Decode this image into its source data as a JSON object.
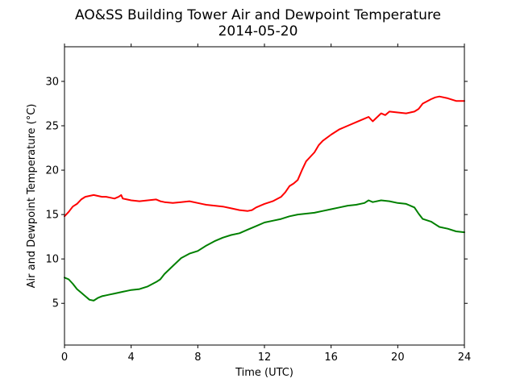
{
  "chart_data": {
    "type": "line",
    "title": "AO&SS Building Tower Air and Dewpoint Temperature",
    "subtitle": "2014-05-20",
    "xlabel": "Time (UTC)",
    "ylabel": "Air and Dewpoint Temperature (°C)",
    "xlim": [
      0,
      24
    ],
    "ylim": [
      0.3,
      33.9
    ],
    "xticks": [
      0,
      4,
      8,
      12,
      16,
      20,
      24
    ],
    "yticks": [
      5,
      10,
      15,
      20,
      25,
      30
    ],
    "grid": false,
    "legend": "none",
    "series": [
      {
        "color": "#ff0000",
        "x": [
          0,
          0.25,
          0.5,
          0.75,
          1,
          1.25,
          1.5,
          1.75,
          2,
          2.25,
          2.5,
          2.75,
          3,
          3.25,
          3.4,
          3.5,
          3.75,
          4,
          4.5,
          5,
          5.5,
          5.75,
          6,
          6.5,
          7,
          7.5,
          8,
          8.5,
          9,
          9.5,
          10,
          10.5,
          11,
          11.25,
          11.5,
          12,
          12.5,
          13,
          13.25,
          13.5,
          13.75,
          14,
          14.25,
          14.5,
          15,
          15.25,
          15.5,
          16,
          16.5,
          17,
          17.5,
          18,
          18.25,
          18.5,
          19,
          19.25,
          19.5,
          20,
          20.5,
          21,
          21.25,
          21.5,
          22,
          22.25,
          22.5,
          23,
          23.5,
          24
        ],
        "y": [
          14.8,
          15.3,
          15.9,
          16.2,
          16.7,
          17.0,
          17.1,
          17.2,
          17.1,
          17.0,
          17.0,
          16.9,
          16.8,
          17.0,
          17.2,
          16.8,
          16.7,
          16.6,
          16.5,
          16.6,
          16.7,
          16.5,
          16.4,
          16.3,
          16.4,
          16.5,
          16.3,
          16.1,
          16.0,
          15.9,
          15.7,
          15.5,
          15.4,
          15.5,
          15.8,
          16.2,
          16.5,
          17.0,
          17.5,
          18.2,
          18.5,
          18.9,
          20.0,
          21.0,
          22.0,
          22.8,
          23.3,
          24.0,
          24.6,
          25.0,
          25.4,
          25.8,
          26.0,
          25.5,
          26.4,
          26.2,
          26.6,
          26.5,
          26.4,
          26.6,
          26.9,
          27.5,
          28.0,
          28.2,
          28.3,
          28.1,
          27.8,
          27.8
        ]
      },
      {
        "color": "#008000",
        "x": [
          0,
          0.25,
          0.5,
          0.75,
          1,
          1.25,
          1.5,
          1.75,
          2,
          2.25,
          2.5,
          2.75,
          3,
          3.25,
          3.5,
          3.75,
          4,
          4.5,
          5,
          5.5,
          5.75,
          6,
          6.5,
          7,
          7.5,
          8,
          8.5,
          9,
          9.5,
          10,
          10.5,
          11,
          11.5,
          12,
          12.5,
          13,
          13.5,
          14,
          14.5,
          15,
          15.5,
          16,
          16.5,
          17,
          17.5,
          18,
          18.25,
          18.5,
          19,
          19.5,
          20,
          20.5,
          21,
          21.25,
          21.5,
          22,
          22.25,
          22.5,
          23,
          23.5,
          24
        ],
        "y": [
          7.9,
          7.7,
          7.2,
          6.6,
          6.2,
          5.8,
          5.4,
          5.3,
          5.6,
          5.8,
          5.9,
          6.0,
          6.1,
          6.2,
          6.3,
          6.4,
          6.5,
          6.6,
          6.9,
          7.4,
          7.7,
          8.3,
          9.2,
          10.1,
          10.6,
          10.9,
          11.5,
          12.0,
          12.4,
          12.7,
          12.9,
          13.3,
          13.7,
          14.1,
          14.3,
          14.5,
          14.8,
          15.0,
          15.1,
          15.2,
          15.4,
          15.6,
          15.8,
          16.0,
          16.1,
          16.3,
          16.6,
          16.4,
          16.6,
          16.5,
          16.3,
          16.2,
          15.8,
          15.1,
          14.5,
          14.2,
          13.9,
          13.6,
          13.4,
          13.1,
          13.0
        ]
      }
    ]
  }
}
